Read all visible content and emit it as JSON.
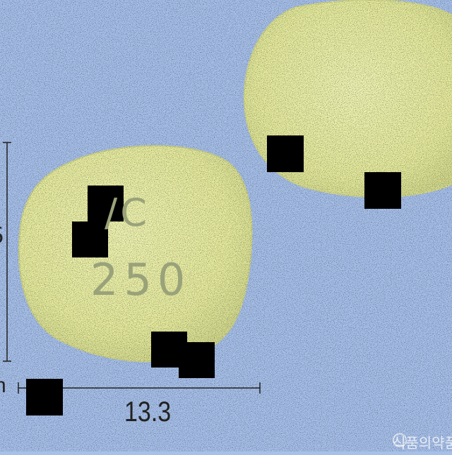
{
  "image": {
    "subject": "pill-photo",
    "background_color": "#a7c0ea",
    "pill_color": "#e7ec9f",
    "imprint": {
      "line1": "/C",
      "line2": "250"
    },
    "measurements": {
      "width_label": "13.3",
      "unit_fragment": "n",
      "height_fragment": "5"
    },
    "watermark_text": "식품의약품안"
  }
}
